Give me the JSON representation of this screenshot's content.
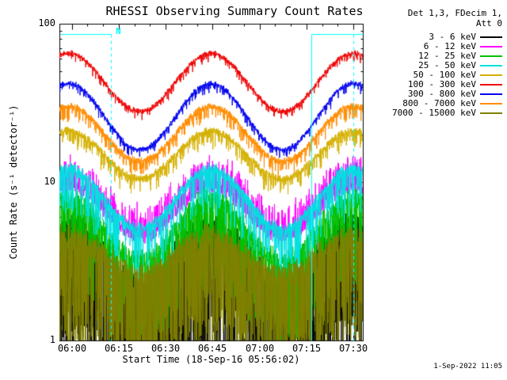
{
  "title": "RHESSI Observing Summary Count Rates",
  "footer_timestamp": "1-Sep-2022 11:05",
  "legend": {
    "header_line1": "Det 1,3, FDecim 1,",
    "header_line2": "Att 0"
  },
  "chart_data": {
    "type": "line",
    "title": "RHESSI Observing Summary Count Rates",
    "xlabel": "Start Time (18-Sep-16 05:56:02)",
    "ylabel": "Count Rate (s⁻¹ detector⁻¹)",
    "yscale": "log",
    "ylim": [
      1,
      100
    ],
    "y_ticks": {
      "major": [
        1,
        10,
        100
      ],
      "minor": [
        2,
        3,
        4,
        5,
        6,
        7,
        8,
        9,
        20,
        30,
        40,
        50,
        60,
        70,
        80,
        90
      ]
    },
    "x_axis": {
      "start_label": "05:56:02",
      "range_min": 0,
      "range_max": 97,
      "units": "minutes since 05:56:02",
      "ticks": [
        {
          "label": "06:00",
          "t": 3.97
        },
        {
          "label": "06:15",
          "t": 18.97
        },
        {
          "label": "06:30",
          "t": 33.97
        },
        {
          "label": "06:45",
          "t": 48.97
        },
        {
          "label": "07:00",
          "t": 63.97
        },
        {
          "label": "07:15",
          "t": 78.97
        },
        {
          "label": "07:30",
          "t": 93.97
        }
      ],
      "minor_tick_interval_min": 5
    },
    "modulation": {
      "period_min": 45.5,
      "peak_at_min": 3
    },
    "sample_step_min": 0.06,
    "series": [
      {
        "name": "3 - 6 keV",
        "color": "#000000",
        "peak": 5.5,
        "trough": 2.2,
        "noise_dex": 0.12,
        "spike_prob": 0.5,
        "spike_dex": 0.9,
        "spike_up": false
      },
      {
        "name": "6 - 12 keV",
        "color": "#FF00FF",
        "peak": 9.5,
        "trough": 4.6,
        "noise_dex": 0.06,
        "spike_prob": 0.25,
        "spike_dex": 0.18,
        "spike_up": true
      },
      {
        "name": "12 - 25 keV",
        "color": "#00C000",
        "peak": 8.0,
        "trough": 3.2,
        "noise_dex": 0.08,
        "spike_prob": 0.3,
        "spike_dex": 0.55,
        "spike_up": false
      },
      {
        "name": "25 - 50 keV",
        "color": "#00E0E0",
        "peak": 12.0,
        "trough": 5.0,
        "noise_dex": 0.05,
        "spike_prob": 0.2,
        "spike_dex": 0.3,
        "spike_up": false
      },
      {
        "name": "50 - 100 keV",
        "color": "#D4B000",
        "peak": 21.0,
        "trough": 10.5,
        "noise_dex": 0.03,
        "spike_prob": 0.15,
        "spike_dex": 0.1,
        "spike_up": false
      },
      {
        "name": "100 - 300 keV",
        "color": "#EE0000",
        "peak": 65.0,
        "trough": 28.0,
        "noise_dex": 0.022,
        "spike_prob": 0.1,
        "spike_dex": 0.05,
        "spike_up": false
      },
      {
        "name": "300 - 800 keV",
        "color": "#0000EE",
        "peak": 42.0,
        "trough": 16.0,
        "noise_dex": 0.022,
        "spike_prob": 0.1,
        "spike_dex": 0.05,
        "spike_up": false
      },
      {
        "name": "800 - 7000 keV",
        "color": "#FF8C00",
        "peak": 30.0,
        "trough": 13.5,
        "noise_dex": 0.028,
        "spike_prob": 0.15,
        "spike_dex": 0.08,
        "spike_up": false
      },
      {
        "name": "7000 - 15000 keV",
        "color": "#808000",
        "peak": 4.5,
        "trough": 2.6,
        "noise_dex": 0.1,
        "spike_prob": 0.45,
        "spike_dex": 0.7,
        "spike_up": false
      }
    ],
    "overlays": {
      "color": "#00FFFF",
      "flag_y_value": 86,
      "segments": [
        {
          "t_start": 0.3,
          "t_end": 16.5
        },
        {
          "t_start": 80.5,
          "t_end": 97
        }
      ],
      "vlines": [
        {
          "t": 16.5,
          "style": "dashed"
        },
        {
          "t": 80.5,
          "style": "solid"
        },
        {
          "t": 94.0,
          "style": "dashed"
        }
      ],
      "night_label": {
        "text": "N",
        "t": 17.5
      }
    }
  }
}
